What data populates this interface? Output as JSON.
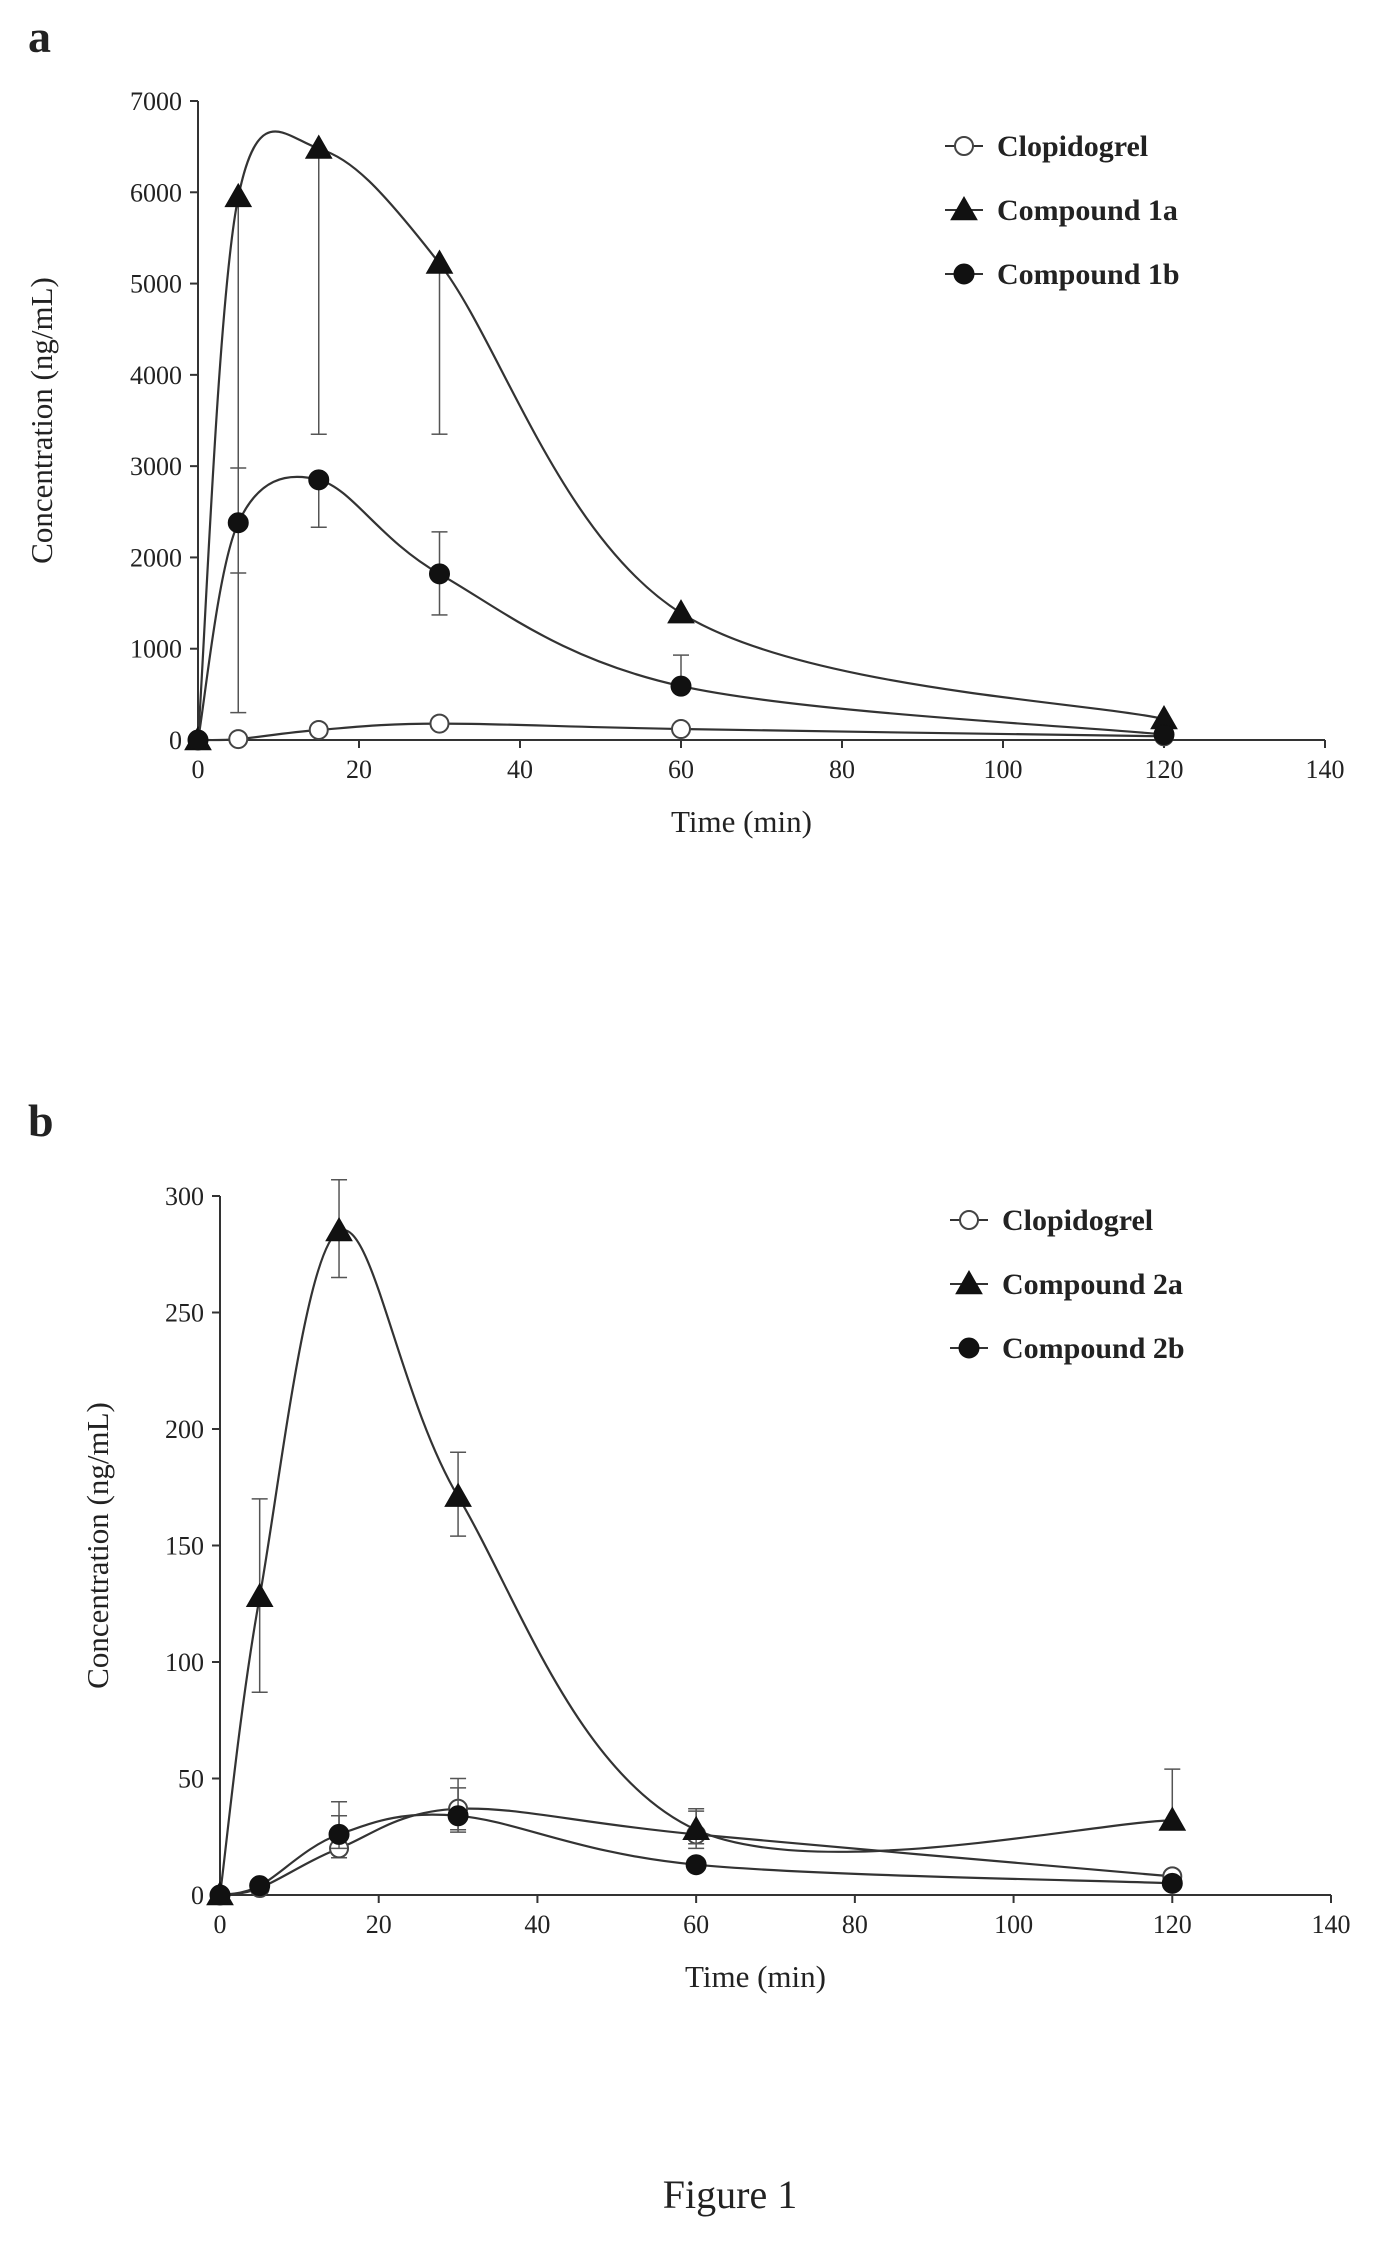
{
  "caption": "Figure 1",
  "chart_data": [
    {
      "panel": "a",
      "type": "line",
      "xlabel": "Time (min)",
      "ylabel": "Concentration (ng/mL)",
      "xlim": [
        0,
        140
      ],
      "ylim": [
        0,
        7000
      ],
      "x_ticks": [
        0,
        20,
        40,
        60,
        80,
        100,
        120,
        140
      ],
      "y_ticks": [
        0,
        1000,
        2000,
        3000,
        4000,
        5000,
        6000,
        7000
      ],
      "grid": false,
      "legend": "top-right",
      "x": [
        0,
        5,
        15,
        30,
        60,
        120
      ],
      "series": [
        {
          "name": "Clopidogrel",
          "marker": "open-circle",
          "values": [
            0,
            10,
            110,
            180,
            120,
            40
          ],
          "error_upper": [
            null,
            null,
            null,
            null,
            null,
            null
          ]
        },
        {
          "name": "Compound 1a",
          "marker": "triangle",
          "values": [
            0,
            5950,
            6480,
            5220,
            1390,
            230
          ],
          "error_upper": [
            null,
            null,
            null,
            null,
            null,
            null
          ],
          "error_lower": [
            null,
            300,
            3350,
            3350,
            null,
            null
          ]
        },
        {
          "name": "Compound 1b",
          "marker": "filled-circle",
          "values": [
            0,
            2380,
            2850,
            1820,
            590,
            60
          ],
          "error_upper": [
            null,
            2980,
            null,
            2280,
            930,
            null
          ],
          "error_lower": [
            null,
            1830,
            2330,
            1370,
            null,
            null
          ]
        }
      ]
    },
    {
      "panel": "b",
      "type": "line",
      "xlabel": "Time (min)",
      "ylabel": "Concentration (ng/mL)",
      "xlim": [
        0,
        140
      ],
      "ylim": [
        0,
        300
      ],
      "x_ticks": [
        0,
        20,
        40,
        60,
        80,
        100,
        120,
        140
      ],
      "y_ticks": [
        0,
        50,
        100,
        150,
        200,
        250,
        300
      ],
      "grid": false,
      "legend": "top-right",
      "x": [
        0,
        5,
        15,
        30,
        60,
        120
      ],
      "series": [
        {
          "name": "Clopidogrel",
          "marker": "open-circle",
          "values": [
            0,
            3,
            20,
            37,
            26,
            8
          ],
          "error_upper": [
            null,
            null,
            34,
            50,
            37,
            null
          ],
          "error_lower": [
            null,
            null,
            16,
            27,
            20,
            null
          ]
        },
        {
          "name": "Compound 2a",
          "marker": "triangle",
          "values": [
            0,
            128,
            285,
            171,
            28,
            32
          ],
          "error_upper": [
            null,
            170,
            307,
            190,
            36,
            54
          ],
          "error_lower": [
            null,
            87,
            265,
            154,
            22,
            null
          ]
        },
        {
          "name": "Compound 2b",
          "marker": "filled-circle",
          "values": [
            0,
            4,
            26,
            34,
            13,
            5
          ],
          "error_upper": [
            null,
            null,
            40,
            46,
            null,
            null
          ],
          "error_lower": [
            null,
            null,
            20,
            28,
            null,
            null
          ]
        }
      ]
    }
  ]
}
